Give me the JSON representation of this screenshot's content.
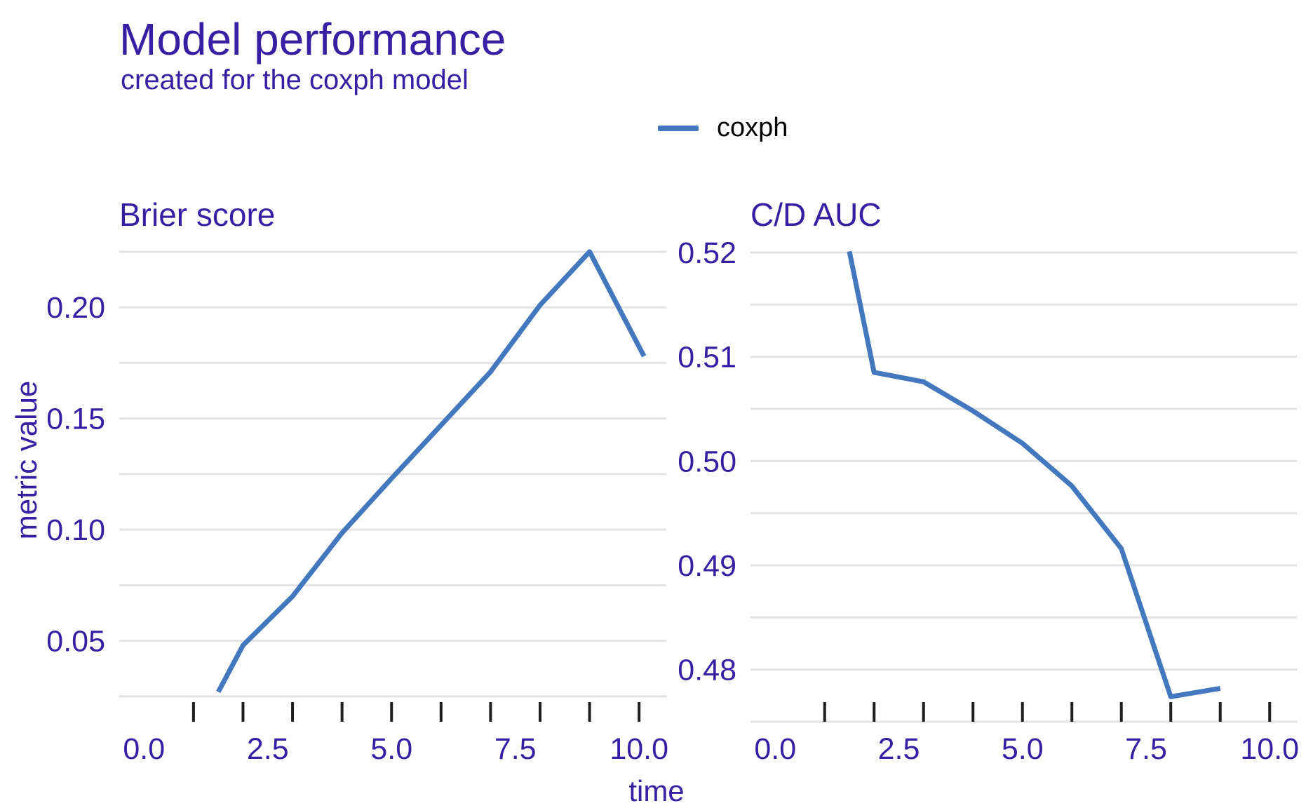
{
  "header": {
    "title": "Model performance",
    "subtitle": "created for the coxph model"
  },
  "legend": {
    "items": [
      {
        "label": "coxph",
        "color": "#4378bf"
      }
    ]
  },
  "axes": {
    "x_title": "time",
    "y_title": "metric value"
  },
  "colors": {
    "accent_purple": "#371ea3",
    "line_blue": "#4378bf",
    "gridline": "#e3e3e3",
    "tick_mark": "#1f1f1f",
    "legend_text": "#000000",
    "background": "#ffffff"
  },
  "chart_data": [
    {
      "type": "line",
      "panel_title": "Brier score",
      "xlabel": "time",
      "ylabel": "metric value",
      "xlim": [
        -0.5,
        10.55
      ],
      "ylim": [
        0.0136,
        0.2294
      ],
      "grid": "on",
      "legend_position": "top-center",
      "x_ticks": [
        1,
        2,
        3,
        4,
        5,
        6,
        7,
        8,
        9,
        10
      ],
      "x_tick_labels": [
        {
          "value": 0,
          "label": "0.0"
        },
        {
          "value": 2.5,
          "label": "2.5"
        },
        {
          "value": 5,
          "label": "5.0"
        },
        {
          "value": 7.5,
          "label": "7.5"
        },
        {
          "value": 10,
          "label": "10.0"
        }
      ],
      "y_gridlines": [
        0.025,
        0.05,
        0.075,
        0.1,
        0.125,
        0.15,
        0.175,
        0.2,
        0.225
      ],
      "y_tick_labels": [
        {
          "value": 0.05,
          "label": "0.05"
        },
        {
          "value": 0.1,
          "label": "0.10"
        },
        {
          "value": 0.15,
          "label": "0.15"
        },
        {
          "value": 0.2,
          "label": "0.20"
        }
      ],
      "series": [
        {
          "name": "coxph",
          "color": "#4378bf",
          "x": [
            1.5,
            2,
            3,
            4,
            5,
            6,
            7,
            8,
            9,
            10.1
          ],
          "y": [
            0.027,
            0.048,
            0.07,
            0.0985,
            0.123,
            0.147,
            0.171,
            0.201,
            0.225,
            0.178
          ]
        }
      ]
    },
    {
      "type": "line",
      "panel_title": "C/D AUC",
      "xlabel": "time",
      "ylabel": "metric value",
      "xlim": [
        -0.5,
        10.55
      ],
      "ylim": [
        0.475,
        0.521
      ],
      "grid": "on",
      "legend_position": "top-center",
      "x_ticks": [
        1,
        2,
        3,
        4,
        5,
        6,
        7,
        8,
        9,
        10
      ],
      "x_tick_labels": [
        {
          "value": 0,
          "label": "0.0"
        },
        {
          "value": 2.5,
          "label": "2.5"
        },
        {
          "value": 5,
          "label": "5.0"
        },
        {
          "value": 7.5,
          "label": "7.5"
        },
        {
          "value": 10,
          "label": "10.0"
        }
      ],
      "y_gridlines": [
        0.475,
        0.48,
        0.485,
        0.49,
        0.495,
        0.5,
        0.505,
        0.51,
        0.515,
        0.52
      ],
      "y_tick_labels": [
        {
          "value": 0.48,
          "label": "0.48"
        },
        {
          "value": 0.49,
          "label": "0.49"
        },
        {
          "value": 0.5,
          "label": "0.50"
        },
        {
          "value": 0.51,
          "label": "0.51"
        },
        {
          "value": 0.52,
          "label": "0.52"
        }
      ],
      "series": [
        {
          "name": "coxph",
          "color": "#4378bf",
          "x": [
            1.5,
            2,
            3,
            4,
            5,
            6,
            7,
            8,
            9
          ],
          "y": [
            0.5201,
            0.5085,
            0.5076,
            0.5048,
            0.5017,
            0.4976,
            0.4916,
            0.4774,
            0.4782
          ]
        }
      ]
    }
  ]
}
